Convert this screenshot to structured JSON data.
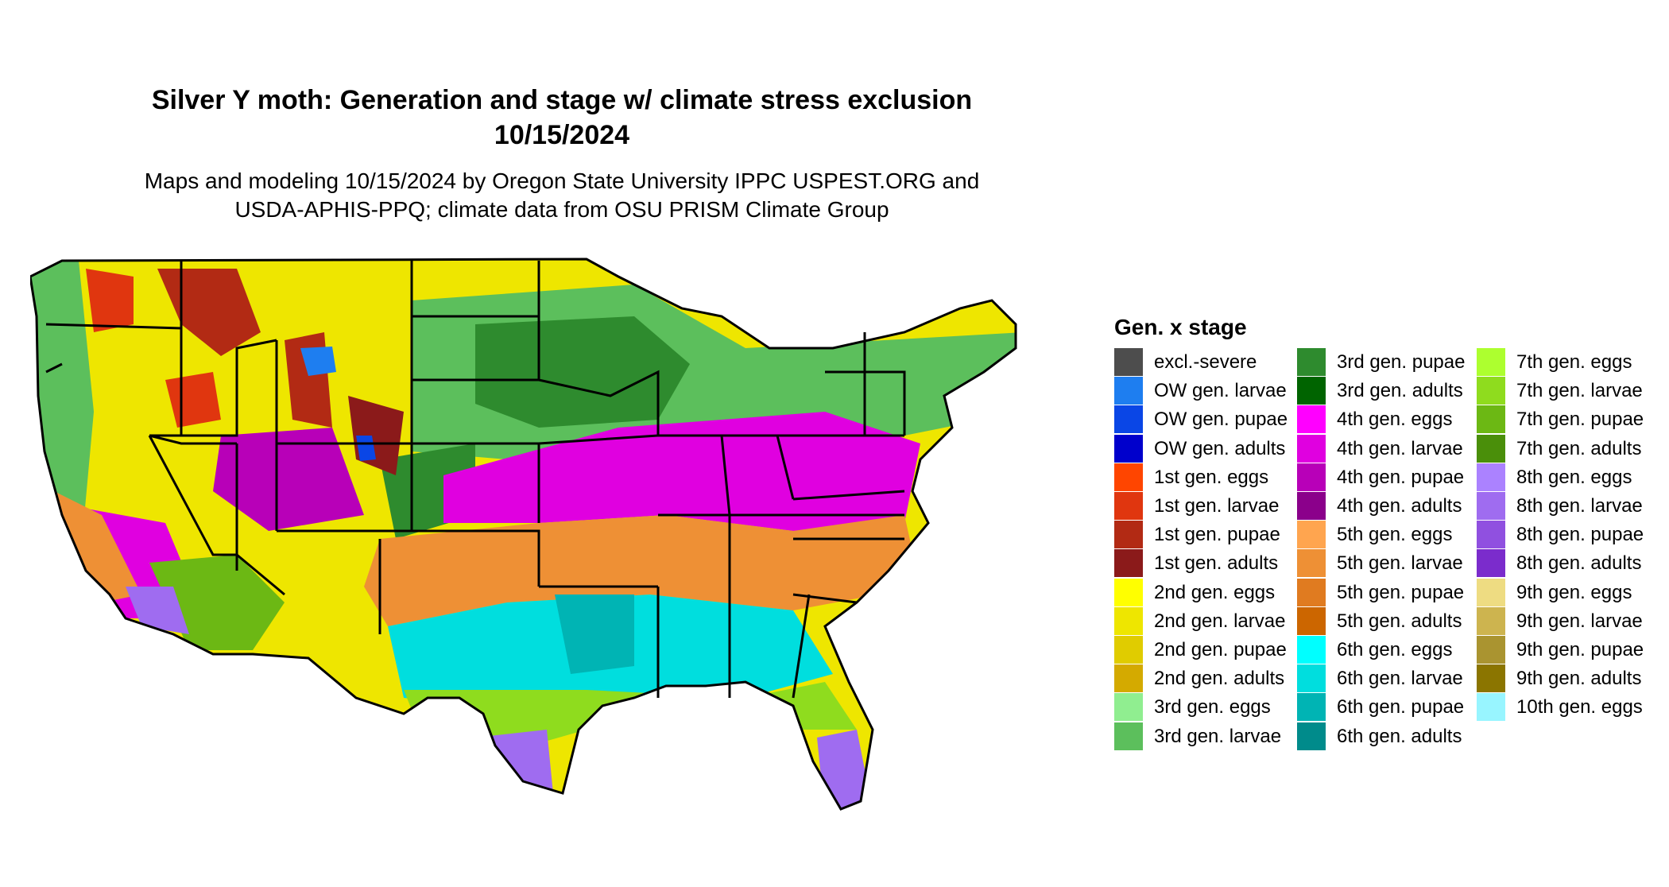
{
  "title": {
    "line1": "Silver Y moth: Generation and stage w/ climate stress exclusion",
    "line2": "10/15/2024"
  },
  "subtitle": {
    "line1": "Maps and modeling 10/15/2024 by Oregon State University IPPC USPEST.ORG and",
    "line2": "USDA-APHIS-PPQ; climate data from OSU PRISM Climate Group"
  },
  "legend": {
    "title": "Gen. x stage",
    "items": [
      {
        "label": "excl.-severe",
        "color": "#4d4d4d"
      },
      {
        "label": "OW gen. larvae",
        "color": "#1e7ef0"
      },
      {
        "label": "OW gen. pupae",
        "color": "#0a46e6"
      },
      {
        "label": "OW gen. adults",
        "color": "#0000cc"
      },
      {
        "label": "1st gen. eggs",
        "color": "#ff4500"
      },
      {
        "label": "1st gen. larvae",
        "color": "#e0360f"
      },
      {
        "label": "1st gen. pupae",
        "color": "#b22a14"
      },
      {
        "label": "1st gen. adults",
        "color": "#8b1a1a"
      },
      {
        "label": "2nd gen. eggs",
        "color": "#ffff00"
      },
      {
        "label": "2nd gen. larvae",
        "color": "#eee600"
      },
      {
        "label": "2nd gen. pupae",
        "color": "#e0cc00"
      },
      {
        "label": "2nd gen. adults",
        "color": "#d4aa00"
      },
      {
        "label": "3rd gen. eggs",
        "color": "#90ee90"
      },
      {
        "label": "3rd gen. larvae",
        "color": "#5cbf5c"
      },
      {
        "label": "3rd gen. pupae",
        "color": "#2e8b2e"
      },
      {
        "label": "3rd gen. adults",
        "color": "#006400"
      },
      {
        "label": "4th gen. eggs",
        "color": "#ff00ff"
      },
      {
        "label": "4th gen. larvae",
        "color": "#e000e0"
      },
      {
        "label": "4th gen. pupae",
        "color": "#b800b8"
      },
      {
        "label": "4th gen. adults",
        "color": "#8b008b"
      },
      {
        "label": "5th gen. eggs",
        "color": "#ffa54f"
      },
      {
        "label": "5th gen. larvae",
        "color": "#ee9035"
      },
      {
        "label": "5th gen. pupae",
        "color": "#e07b20"
      },
      {
        "label": "5th gen. adults",
        "color": "#cc6600"
      },
      {
        "label": "6th gen. eggs",
        "color": "#00ffff"
      },
      {
        "label": "6th gen. larvae",
        "color": "#00dede"
      },
      {
        "label": "6th gen. pupae",
        "color": "#00b4b4"
      },
      {
        "label": "6th gen. adults",
        "color": "#008b8b"
      },
      {
        "label": "7th gen. eggs",
        "color": "#adff2f"
      },
      {
        "label": "7th gen. larvae",
        "color": "#8fdc1e"
      },
      {
        "label": "7th gen. pupae",
        "color": "#6cb814"
      },
      {
        "label": "7th gen. adults",
        "color": "#4a8f0a"
      },
      {
        "label": "8th gen. eggs",
        "color": "#ab82ff"
      },
      {
        "label": "8th gen. larvae",
        "color": "#9f6cf0"
      },
      {
        "label": "8th gen. pupae",
        "color": "#9050e0"
      },
      {
        "label": "8th gen. adults",
        "color": "#7b2ccc"
      },
      {
        "label": "9th gen. eggs",
        "color": "#eedc82"
      },
      {
        "label": "9th gen. larvae",
        "color": "#cdb44f"
      },
      {
        "label": "9th gen. pupae",
        "color": "#aa9430"
      },
      {
        "label": "9th gen. adults",
        "color": "#8b7500"
      },
      {
        "label": "10th gen. eggs",
        "color": "#98f5ff"
      }
    ]
  }
}
